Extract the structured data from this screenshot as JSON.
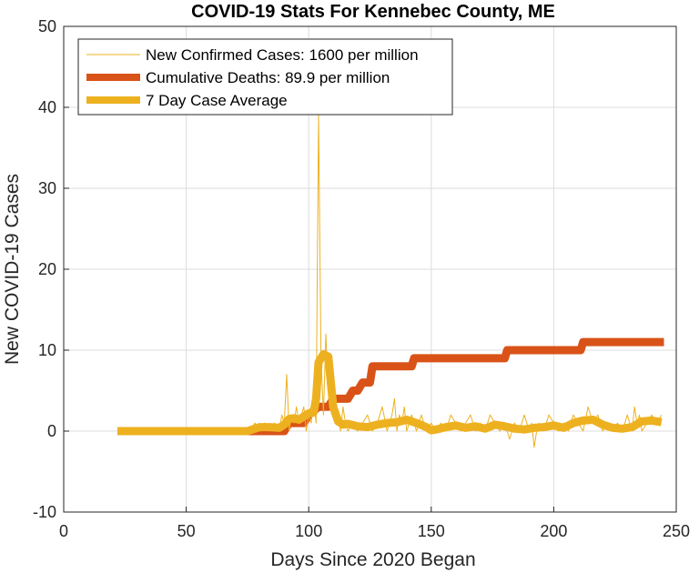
{
  "chart_data": {
    "type": "line",
    "title": "COVID-19 Stats For Kennebec County, ME",
    "xlabel": "Days Since 2020 Began",
    "ylabel": "New COVID-19 Cases",
    "xlim": [
      0,
      250
    ],
    "ylim": [
      -10,
      50
    ],
    "xticks": [
      "0",
      "50",
      "100",
      "150",
      "200",
      "250"
    ],
    "yticks": [
      "-10",
      "0",
      "10",
      "20",
      "30",
      "40",
      "50"
    ],
    "grid": true,
    "legend_position": "top-left",
    "series": [
      {
        "name": "New Confirmed Cases: 1600 per million",
        "color": "#EDB120",
        "style": "thin",
        "x": [
          22,
          70,
          76,
          78,
          80,
          82,
          84,
          86,
          88,
          89,
          90,
          91,
          92,
          93,
          94,
          95,
          96,
          97,
          98,
          99,
          100,
          101,
          102,
          103,
          104,
          105,
          106,
          107,
          108,
          109,
          110,
          111,
          112,
          113,
          114,
          115,
          116,
          118,
          120,
          122,
          124,
          126,
          128,
          130,
          132,
          134,
          135,
          136,
          137,
          138,
          139,
          140,
          141,
          142,
          143,
          144,
          145,
          146,
          148,
          150,
          152,
          154,
          156,
          158,
          160,
          162,
          164,
          166,
          168,
          170,
          172,
          174,
          176,
          178,
          180,
          182,
          184,
          186,
          188,
          190,
          191,
          192,
          193,
          194,
          196,
          198,
          200,
          202,
          204,
          206,
          208,
          210,
          212,
          214,
          216,
          218,
          220,
          222,
          224,
          226,
          228,
          230,
          232,
          233,
          234,
          235,
          236,
          238,
          240,
          242,
          244
        ],
        "y": [
          0,
          0,
          0,
          1,
          0,
          1,
          0,
          1,
          0,
          2,
          1,
          7,
          0,
          2,
          1,
          3,
          1,
          2,
          3,
          0,
          2,
          1,
          4,
          1,
          39,
          9,
          2,
          12,
          5,
          8,
          3,
          1,
          2,
          0,
          3,
          1,
          0,
          1,
          0,
          1,
          2,
          0,
          1,
          3,
          0,
          2,
          4,
          0,
          2,
          1,
          3,
          0,
          1,
          2,
          1,
          0,
          1,
          2,
          0,
          1,
          0,
          1,
          0,
          2,
          1,
          0,
          1,
          2,
          0,
          1,
          0,
          2,
          1,
          0,
          1,
          -1,
          1,
          0,
          2,
          0,
          1,
          -2,
          0,
          1,
          0,
          2,
          1,
          0,
          1,
          0,
          2,
          1,
          0,
          3,
          1,
          2,
          0,
          1,
          0,
          1,
          0,
          2,
          0,
          3,
          1,
          2,
          0,
          1,
          2,
          1,
          2
        ]
      },
      {
        "name": "Cumulative Deaths: 89.9 per million",
        "color": "#D95319",
        "style": "thick",
        "x": [
          22,
          77,
          90,
          92,
          98,
          100,
          104,
          108,
          110,
          116,
          118,
          120,
          122,
          125,
          126,
          141,
          142,
          143,
          179,
          180,
          181,
          210,
          211,
          212,
          245
        ],
        "y": [
          0,
          0,
          0,
          1,
          1,
          2,
          3,
          3,
          4,
          4,
          5,
          5,
          6,
          6,
          8,
          8,
          8,
          9,
          9,
          9,
          10,
          10,
          10,
          11,
          11
        ]
      },
      {
        "name": "7 Day Case Average",
        "color": "#EDB120",
        "style": "thick",
        "x": [
          22,
          75,
          78,
          80,
          84,
          88,
          90,
          92,
          94,
          96,
          98,
          100,
          102,
          103,
          104,
          106,
          108,
          110,
          112,
          114,
          116,
          120,
          124,
          128,
          132,
          136,
          140,
          144,
          148,
          150,
          152,
          156,
          160,
          164,
          168,
          172,
          176,
          180,
          184,
          188,
          192,
          196,
          200,
          204,
          208,
          212,
          216,
          220,
          224,
          228,
          232,
          236,
          240,
          244
        ],
        "y": [
          0,
          0,
          0.3,
          0.5,
          0.5,
          0.4,
          0.8,
          1.5,
          1.6,
          1.4,
          1.8,
          2.2,
          2.3,
          4.0,
          8.5,
          9.5,
          9.2,
          3.0,
          1.2,
          0.8,
          0.9,
          0.6,
          0.5,
          0.8,
          1.0,
          1.1,
          1.4,
          1.0,
          0.5,
          0.1,
          0.2,
          0.5,
          0.7,
          0.4,
          0.6,
          0.3,
          0.8,
          0.6,
          0.3,
          0.2,
          0.4,
          0.5,
          0.7,
          0.4,
          1.0,
          1.3,
          1.4,
          0.8,
          0.4,
          0.3,
          0.5,
          1.2,
          1.3,
          1.1
        ]
      }
    ]
  }
}
